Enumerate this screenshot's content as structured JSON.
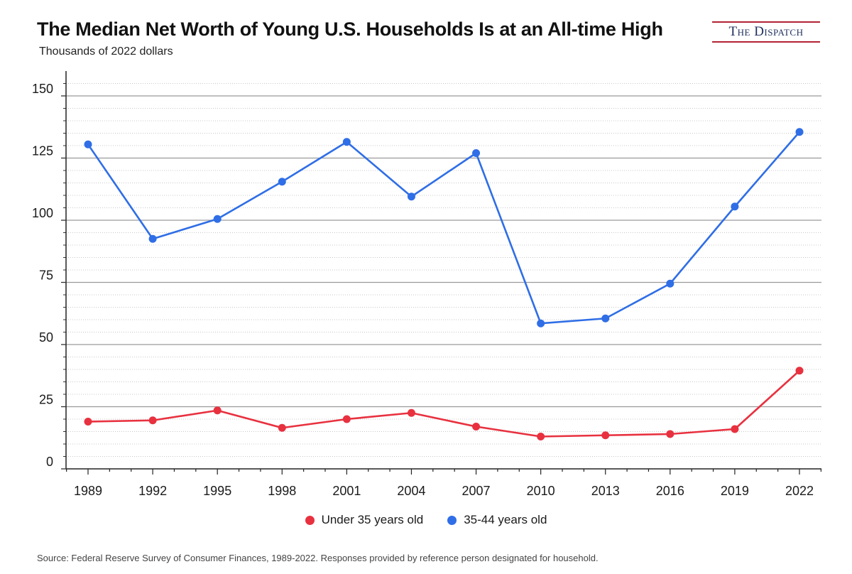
{
  "header": {
    "title": "The Median Net Worth of Young U.S. Households Is at an All-time High",
    "subtitle": "Thousands of 2022 dollars",
    "logo_text": "The Dispatch"
  },
  "footer": {
    "source": "Source: Federal Reserve Survey of Consumer Finances, 1989-2022.  Responses provided by reference person designated for household."
  },
  "colors": {
    "under35": "#e8313f",
    "age35_44": "#2f6ee6",
    "gridline_major": "#9a9a9a",
    "gridline_minor": "#c8c8c8",
    "logo_accent": "#b22234"
  },
  "chart_data": {
    "type": "line",
    "title": "The Median Net Worth of Young U.S. Households Is at an All-time High",
    "subtitle": "Thousands of 2022 dollars",
    "xlabel": "",
    "ylabel": "Thousands of 2022 dollars",
    "categories": [
      "1989",
      "1992",
      "1995",
      "1998",
      "2001",
      "2004",
      "2007",
      "2010",
      "2013",
      "2016",
      "2019",
      "2022"
    ],
    "series": [
      {
        "name": "Under 35 years old",
        "color": "#e8313f",
        "values": [
          19,
          19.5,
          23.5,
          16.5,
          20,
          22.5,
          17,
          13,
          13.5,
          14,
          16,
          39.5
        ]
      },
      {
        "name": "35-44 years old",
        "color": "#2f6ee6",
        "values": [
          130.5,
          92.5,
          100.5,
          115.5,
          131.5,
          109.5,
          127,
          58.5,
          60.5,
          74.5,
          105.5,
          135.5
        ]
      }
    ],
    "ylim": [
      0,
      160
    ],
    "yticks": [
      0,
      25,
      50,
      75,
      100,
      125,
      150
    ],
    "grid": true,
    "legend_position": "bottom-center"
  }
}
